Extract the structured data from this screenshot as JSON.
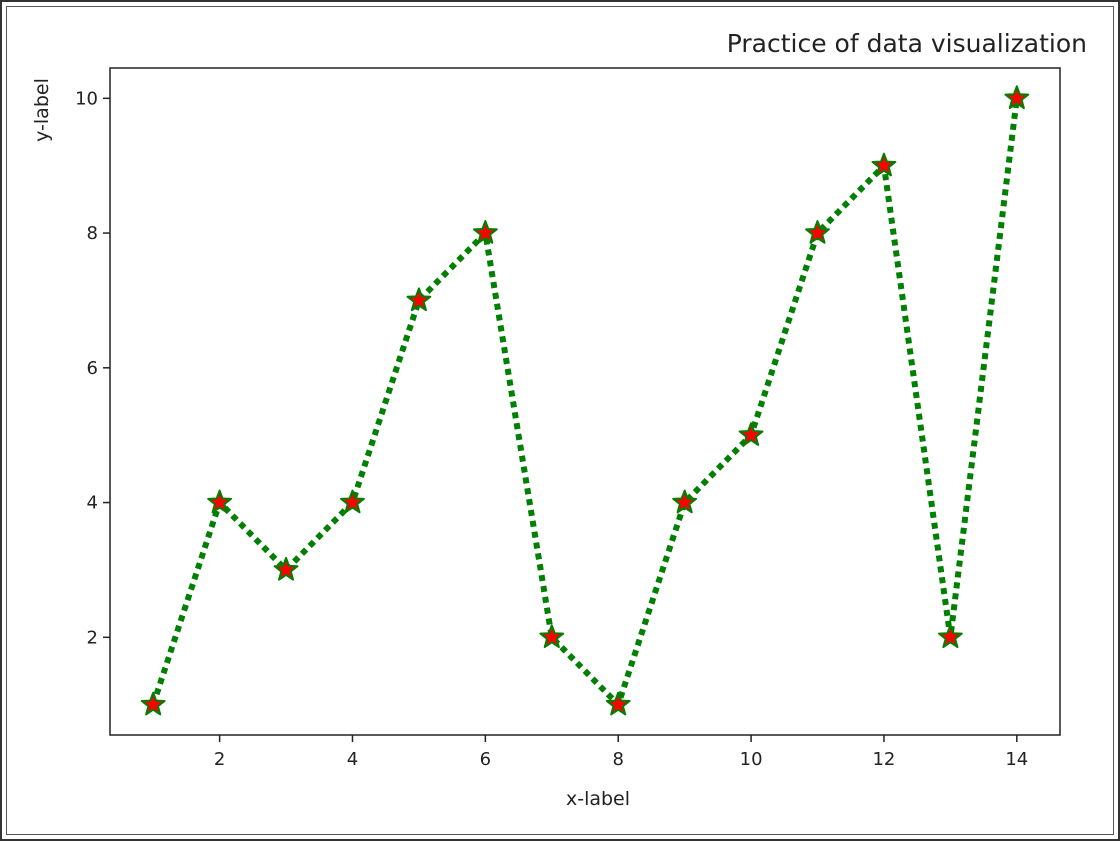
{
  "chart_data": {
    "type": "line",
    "title": "Practice of data visualization",
    "xlabel": "x-label",
    "ylabel": "y-label",
    "x": [
      1,
      2,
      3,
      4,
      5,
      6,
      7,
      8,
      9,
      10,
      11,
      12,
      13,
      14
    ],
    "series": [
      {
        "values": [
          1,
          4,
          3,
          4,
          7,
          8,
          2,
          1,
          4,
          5,
          8,
          9,
          2,
          10
        ],
        "line_color": "#008000",
        "line_style": "dotted",
        "marker": "star",
        "marker_face_color": "#ff0000",
        "marker_edge_color": "#008000"
      }
    ],
    "xlim": [
      0.35,
      14.65
    ],
    "ylim": [
      0.55,
      10.45
    ],
    "xticks": [
      2,
      4,
      6,
      8,
      10,
      12,
      14
    ],
    "yticks": [
      2,
      4,
      6,
      8,
      10
    ],
    "xtick_labels": [
      "2",
      "4",
      "6",
      "8",
      "10",
      "12",
      "14"
    ],
    "ytick_labels": [
      "2",
      "4",
      "6",
      "8",
      "10"
    ],
    "grid": false,
    "legend": "none"
  }
}
